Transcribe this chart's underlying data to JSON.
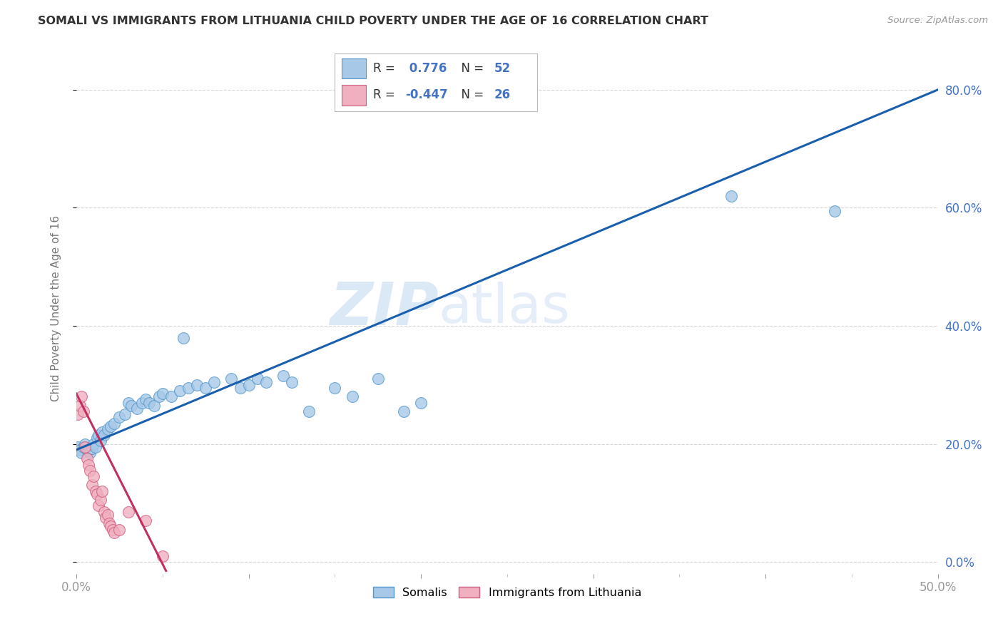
{
  "title": "SOMALI VS IMMIGRANTS FROM LITHUANIA CHILD POVERTY UNDER THE AGE OF 16 CORRELATION CHART",
  "source": "Source: ZipAtlas.com",
  "ylabel": "Child Poverty Under the Age of 16",
  "xlim": [
    0,
    0.5
  ],
  "ylim": [
    -0.02,
    0.88
  ],
  "legend_r_somali": "0.776",
  "legend_n_somali": "52",
  "legend_r_lithuania": "-0.447",
  "legend_n_lithuania": "26",
  "somali_color": "#a8c8e8",
  "somali_edge": "#5599cc",
  "somali_line_color": "#1a5fad",
  "lithuania_color": "#f0b0c0",
  "lithuania_edge": "#d06080",
  "lithuania_line_color": "#c03060",
  "somali_x": [
    0.001,
    0.002,
    0.003,
    0.004,
    0.005,
    0.006,
    0.007,
    0.008,
    0.009,
    0.01,
    0.011,
    0.012,
    0.013,
    0.014,
    0.015,
    0.016,
    0.018,
    0.02,
    0.022,
    0.025,
    0.028,
    0.03,
    0.032,
    0.035,
    0.038,
    0.04,
    0.042,
    0.045,
    0.048,
    0.05,
    0.055,
    0.06,
    0.062,
    0.065,
    0.07,
    0.075,
    0.08,
    0.09,
    0.095,
    0.1,
    0.105,
    0.11,
    0.12,
    0.125,
    0.135,
    0.15,
    0.16,
    0.175,
    0.19,
    0.2,
    0.38,
    0.44
  ],
  "somali_y": [
    0.195,
    0.19,
    0.185,
    0.195,
    0.2,
    0.19,
    0.188,
    0.185,
    0.192,
    0.2,
    0.195,
    0.21,
    0.215,
    0.205,
    0.22,
    0.215,
    0.225,
    0.23,
    0.235,
    0.245,
    0.25,
    0.27,
    0.265,
    0.26,
    0.27,
    0.275,
    0.27,
    0.265,
    0.28,
    0.285,
    0.28,
    0.29,
    0.38,
    0.295,
    0.3,
    0.295,
    0.305,
    0.31,
    0.295,
    0.3,
    0.31,
    0.305,
    0.315,
    0.305,
    0.255,
    0.295,
    0.28,
    0.31,
    0.255,
    0.27,
    0.62,
    0.595
  ],
  "lithuania_x": [
    0.001,
    0.002,
    0.003,
    0.004,
    0.005,
    0.006,
    0.007,
    0.008,
    0.009,
    0.01,
    0.011,
    0.012,
    0.013,
    0.014,
    0.015,
    0.016,
    0.017,
    0.018,
    0.019,
    0.02,
    0.021,
    0.022,
    0.025,
    0.03,
    0.04,
    0.05
  ],
  "lithuania_y": [
    0.25,
    0.265,
    0.28,
    0.255,
    0.195,
    0.175,
    0.165,
    0.155,
    0.13,
    0.145,
    0.12,
    0.115,
    0.095,
    0.105,
    0.12,
    0.085,
    0.075,
    0.08,
    0.065,
    0.06,
    0.055,
    0.05,
    0.055,
    0.085,
    0.07,
    0.01
  ],
  "watermark_zip": "ZIP",
  "watermark_atlas": "atlas",
  "background_color": "#ffffff",
  "grid_color": "#cccccc",
  "tick_color": "#4472c4",
  "axis_label_color": "#777777"
}
